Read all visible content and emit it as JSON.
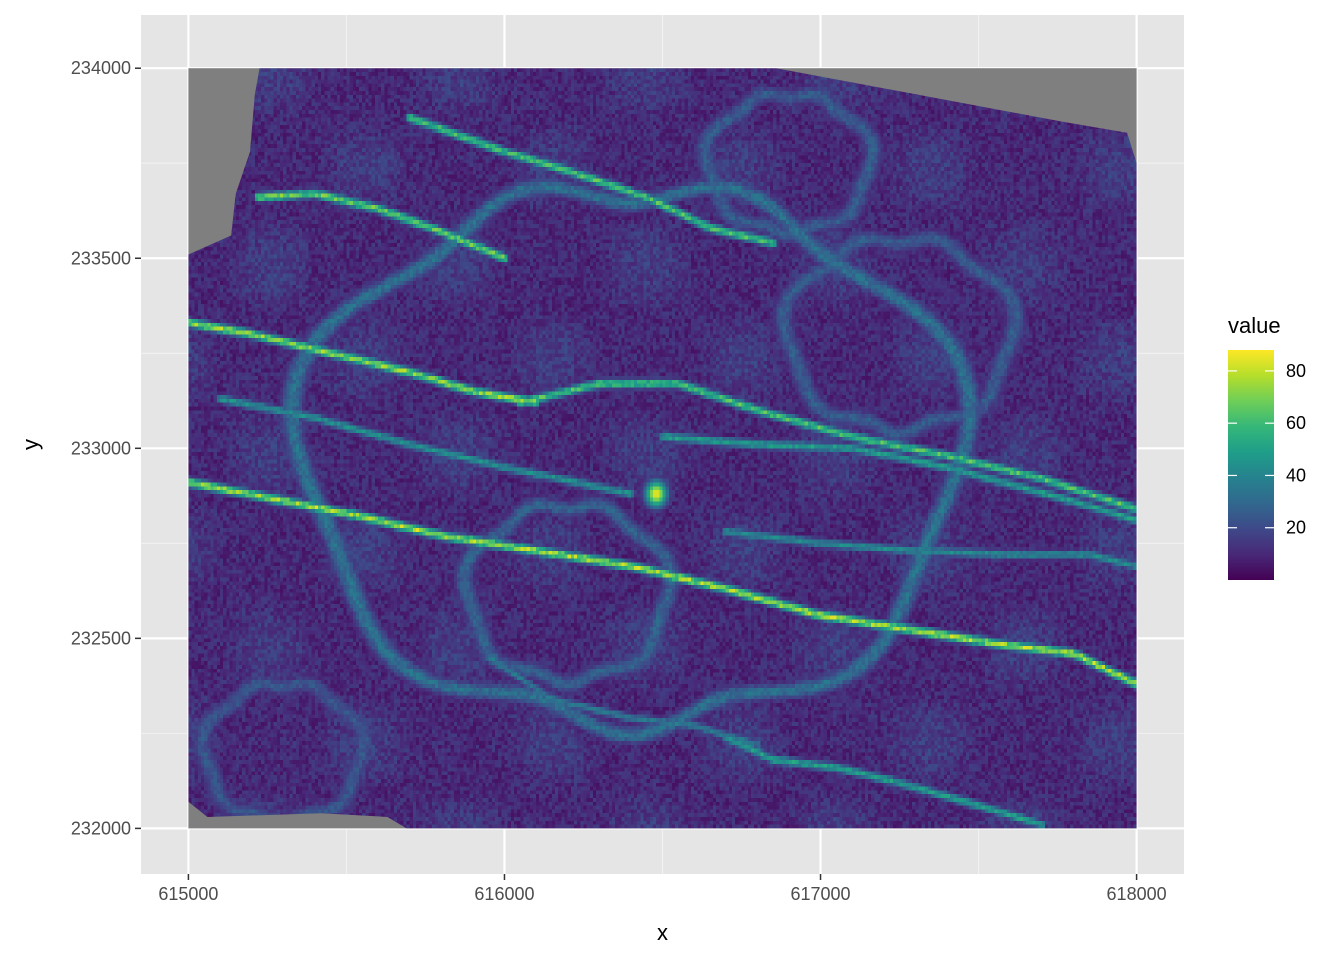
{
  "chart_data": {
    "type": "heatmap",
    "title": "",
    "xlabel": "x",
    "ylabel": "y",
    "xlim": [
      614850,
      618150
    ],
    "ylim": [
      231880,
      234140
    ],
    "raster_extent": {
      "x": [
        615000,
        618000
      ],
      "y": [
        232000,
        234000
      ]
    },
    "x_ticks": [
      615000,
      616000,
      617000,
      618000
    ],
    "x_tick_labels": [
      "615000",
      "616000",
      "617000",
      "618000"
    ],
    "x_minor": [
      615500,
      616500,
      617500
    ],
    "y_ticks": [
      232000,
      232500,
      233000,
      233500,
      234000
    ],
    "y_tick_labels": [
      "232000",
      "232500",
      "233000",
      "233500",
      "234000"
    ],
    "y_minor": [
      232250,
      232750,
      233250,
      233750
    ],
    "grid": true,
    "panel_background": "#e5e5e5",
    "na_color": "#7f7f7f",
    "legend": {
      "title": "value",
      "placement": "right",
      "range": [
        0,
        88
      ],
      "ticks": [
        20,
        40,
        60,
        80
      ],
      "tick_labels": [
        "20",
        "40",
        "60",
        "80"
      ],
      "colors": [
        "#440154",
        "#482878",
        "#3e4989",
        "#31688e",
        "#26828e",
        "#1f9e89",
        "#35b779",
        "#6ece58",
        "#b5de2b",
        "#fde725"
      ]
    },
    "features": [
      {
        "type": "linear",
        "value": 82,
        "points": [
          [
            615000,
            233330
          ],
          [
            615200,
            233300
          ],
          [
            615450,
            233250
          ],
          [
            615700,
            233200
          ],
          [
            615900,
            233150
          ],
          [
            616100,
            233120
          ]
        ]
      },
      {
        "type": "linear",
        "value": 75,
        "points": [
          [
            615220,
            233660
          ],
          [
            615400,
            233670
          ],
          [
            615600,
            233630
          ],
          [
            615800,
            233570
          ],
          [
            616000,
            233500
          ]
        ]
      },
      {
        "type": "linear",
        "value": 70,
        "points": [
          [
            615700,
            233870
          ],
          [
            616000,
            233780
          ],
          [
            616200,
            233730
          ],
          [
            616450,
            233660
          ],
          [
            616650,
            233580
          ],
          [
            616850,
            233540
          ]
        ]
      },
      {
        "type": "linear",
        "value": 70,
        "points": [
          [
            616050,
            233120
          ],
          [
            616300,
            233170
          ],
          [
            616550,
            233170
          ],
          [
            616800,
            233100
          ],
          [
            617100,
            233030
          ],
          [
            617400,
            232980
          ],
          [
            617700,
            232920
          ],
          [
            618000,
            232840
          ]
        ]
      },
      {
        "type": "linear",
        "value": 55,
        "points": [
          [
            616500,
            233030
          ],
          [
            616800,
            233010
          ],
          [
            617100,
            233000
          ],
          [
            617400,
            232950
          ],
          [
            617800,
            232860
          ],
          [
            618000,
            232810
          ]
        ]
      },
      {
        "type": "linear",
        "value": 85,
        "points": [
          [
            615000,
            232910
          ],
          [
            615250,
            232870
          ],
          [
            615550,
            232820
          ],
          [
            615800,
            232770
          ],
          [
            616100,
            232730
          ],
          [
            616400,
            232690
          ],
          [
            616700,
            232630
          ],
          [
            617000,
            232560
          ],
          [
            617300,
            232520
          ],
          [
            617600,
            232480
          ],
          [
            617800,
            232460
          ],
          [
            618000,
            232380
          ]
        ]
      },
      {
        "type": "linear",
        "value": 50,
        "points": [
          [
            615100,
            233130
          ],
          [
            615400,
            233080
          ],
          [
            615700,
            233010
          ],
          [
            616000,
            232950
          ],
          [
            616400,
            232880
          ]
        ]
      },
      {
        "type": "linear",
        "value": 48,
        "points": [
          [
            616700,
            232780
          ],
          [
            617000,
            232750
          ],
          [
            617300,
            232730
          ],
          [
            617600,
            232720
          ],
          [
            617850,
            232720
          ],
          [
            618000,
            232690
          ]
        ]
      },
      {
        "type": "linear",
        "value": 55,
        "points": [
          [
            616700,
            232240
          ],
          [
            616850,
            232180
          ],
          [
            617050,
            232160
          ],
          [
            617250,
            232120
          ],
          [
            617500,
            232060
          ],
          [
            617700,
            232010
          ]
        ]
      },
      {
        "type": "linear",
        "value": 40,
        "points": [
          [
            615950,
            232450
          ],
          [
            616150,
            232340
          ],
          [
            616400,
            232290
          ],
          [
            616600,
            232270
          ],
          [
            616800,
            232220
          ]
        ]
      },
      {
        "type": "ring",
        "value": 38,
        "center": [
          616400,
          232980
        ],
        "radius_x": 1050,
        "radius_y": 700
      },
      {
        "type": "ring",
        "value": 32,
        "center": [
          616200,
          232620
        ],
        "radius_x": 320,
        "radius_y": 230
      },
      {
        "type": "ring",
        "value": 30,
        "center": [
          617250,
          233300
        ],
        "radius_x": 360,
        "radius_y": 250
      },
      {
        "type": "ring",
        "value": 28,
        "center": [
          615300,
          232200
        ],
        "radius_x": 250,
        "radius_y": 180
      },
      {
        "type": "ring",
        "value": 30,
        "center": [
          616900,
          233750
        ],
        "radius_x": 260,
        "radius_y": 180
      },
      {
        "type": "blob",
        "value": 86,
        "center": [
          616480,
          232880
        ],
        "radius": 25
      }
    ]
  }
}
